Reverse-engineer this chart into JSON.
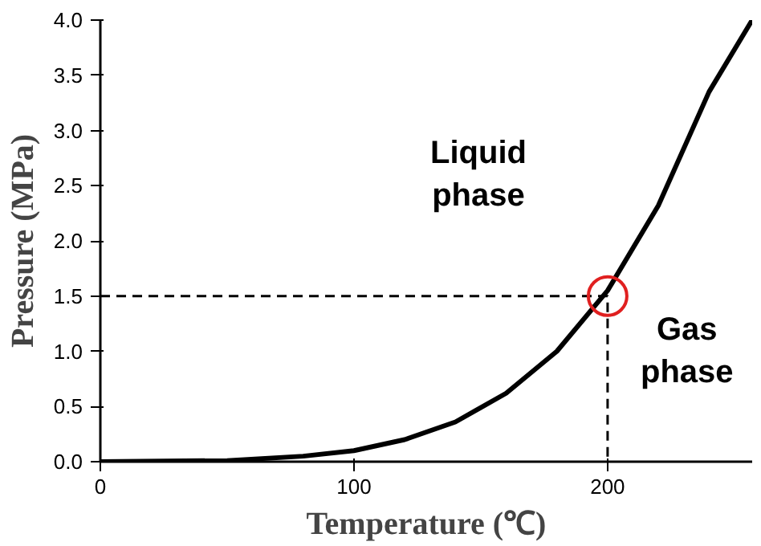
{
  "chart_data": {
    "type": "line",
    "xlabel": "Temperature (℃)",
    "ylabel": "Pressure (MPa)",
    "xlim": [
      0,
      257
    ],
    "ylim": [
      0,
      4
    ],
    "xticks": [
      0,
      100,
      200
    ],
    "yticks": [
      {
        "value": 0,
        "label": "0.0"
      },
      {
        "value": 0.5,
        "label": "0.5"
      },
      {
        "value": 1,
        "label": "1.0"
      },
      {
        "value": 1.5,
        "label": "1.5"
      },
      {
        "value": 2,
        "label": "2.0"
      },
      {
        "value": 2.5,
        "label": "2.5"
      },
      {
        "value": 3,
        "label": "3.0"
      },
      {
        "value": 3.5,
        "label": "3.5"
      },
      {
        "value": 4,
        "label": "4.0"
      }
    ],
    "grid": false,
    "series": [
      {
        "color": "#000000",
        "line_style": "solid",
        "x": [
          0,
          50,
          80,
          100,
          120,
          140,
          160,
          180,
          200,
          220,
          240,
          257
        ],
        "values": [
          0,
          0.01,
          0.05,
          0.1,
          0.2,
          0.36,
          0.62,
          1.0,
          1.55,
          2.32,
          3.35,
          4.0
        ]
      },
      {
        "color": "#000000",
        "line_style": "dashed",
        "x": [
          0,
          200,
          200
        ],
        "values": [
          1.5,
          1.5,
          0
        ]
      },
      {
        "type": "scatter",
        "marker": "circle",
        "color": "#e02020",
        "x": [
          200
        ],
        "values": [
          1.5
        ]
      }
    ],
    "annotations": [
      "Liquid\nphase",
      "Gas\nphase"
    ]
  }
}
